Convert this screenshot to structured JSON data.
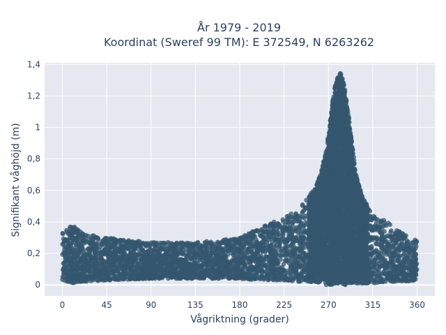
{
  "chart_data": {
    "type": "scatter",
    "title_line1": "År 1979 - 2019",
    "title_line2": "Koordinat (Sweref 99 TM): E 372549, N 6263262",
    "xlabel": "Vågriktning (grader)",
    "ylabel": "Signifikant våghöjd (m)",
    "xlim": [
      -18,
      378
    ],
    "ylim": [
      -0.07,
      1.41
    ],
    "xticks": [
      0,
      45,
      90,
      135,
      180,
      225,
      270,
      315,
      360
    ],
    "xtick_labels": [
      "0",
      "45",
      "90",
      "135",
      "180",
      "225",
      "270",
      "315",
      "360"
    ],
    "yticks": [
      0,
      0.2,
      0.4,
      0.6,
      0.8,
      1.0,
      1.2,
      1.4
    ],
    "ytick_labels": [
      "0",
      "0,2",
      "0,4",
      "0,6",
      "0,8",
      "1",
      "1,2",
      "1,4"
    ],
    "grid": true,
    "marker_color": "#34576f",
    "plot_background": "#e5e8f0",
    "envelope": {
      "x": [
        0,
        10,
        20,
        45,
        90,
        135,
        180,
        200,
        225,
        240,
        255,
        262,
        268,
        272,
        276,
        280,
        283,
        286,
        290,
        294,
        298,
        305,
        315,
        330,
        345,
        360
      ],
      "y_max": [
        0.33,
        0.38,
        0.33,
        0.3,
        0.27,
        0.27,
        0.3,
        0.36,
        0.43,
        0.49,
        0.6,
        0.7,
        0.87,
        1.05,
        1.25,
        1.33,
        1.35,
        1.27,
        1.1,
        0.9,
        0.7,
        0.55,
        0.45,
        0.4,
        0.33,
        0.28
      ],
      "y_min": [
        0.03,
        0.01,
        0.02,
        0.03,
        0.04,
        0.04,
        0.04,
        0.03,
        0.03,
        0.02,
        0.02,
        0.01,
        0.0,
        0.0,
        0.0,
        0.0,
        0.0,
        0.0,
        0.0,
        0.01,
        0.01,
        0.01,
        0.01,
        0.02,
        0.02,
        0.03
      ]
    }
  }
}
